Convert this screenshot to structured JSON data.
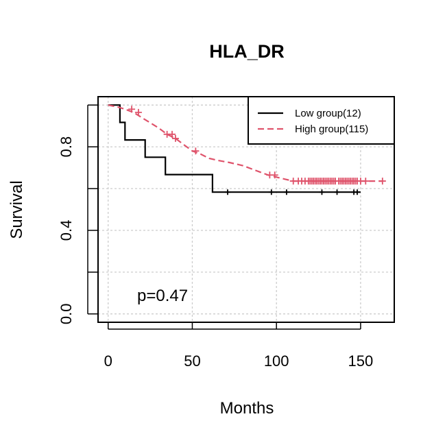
{
  "chart_data": {
    "type": "line",
    "subtype": "kaplan-meier",
    "title": "HLA_DR",
    "xlabel": "Months",
    "ylabel": "Survival",
    "xlim": [
      -6,
      170
    ],
    "ylim": [
      -0.04,
      1.04
    ],
    "x_ticks": [
      0,
      50,
      100,
      150
    ],
    "x_tick_labels": [
      "0",
      "50",
      "100",
      "150"
    ],
    "y_ticks": [
      0.0,
      0.2,
      0.4,
      0.6,
      0.8,
      1.0
    ],
    "y_tick_labels": [
      "0.0",
      "",
      "0.4",
      "",
      "0.8",
      ""
    ],
    "grid": true,
    "legend_position": "top-right",
    "annotation": "p=0.47",
    "series": [
      {
        "name": "Low group(12)",
        "color": "#000000",
        "line_style": "solid",
        "steps": [
          [
            0,
            1.0
          ],
          [
            7,
            1.0
          ],
          [
            7,
            0.917
          ],
          [
            10,
            0.917
          ],
          [
            10,
            0.833
          ],
          [
            22,
            0.833
          ],
          [
            22,
            0.75
          ],
          [
            34,
            0.75
          ],
          [
            34,
            0.667
          ],
          [
            62,
            0.667
          ],
          [
            62,
            0.583
          ],
          [
            150,
            0.583
          ]
        ],
        "censor_x": [
          71,
          97,
          106,
          127,
          136,
          146,
          148
        ]
      },
      {
        "name": "High group(115)",
        "color": "#DF536B",
        "line_style": "dashed",
        "steps": [
          [
            0,
            1.0
          ],
          [
            6,
            0.99
          ],
          [
            10,
            0.98
          ],
          [
            15,
            0.965
          ],
          [
            20,
            0.94
          ],
          [
            25,
            0.915
          ],
          [
            30,
            0.89
          ],
          [
            35,
            0.86
          ],
          [
            40,
            0.84
          ],
          [
            45,
            0.81
          ],
          [
            50,
            0.78
          ],
          [
            55,
            0.765
          ],
          [
            60,
            0.745
          ],
          [
            65,
            0.735
          ],
          [
            72,
            0.725
          ],
          [
            80,
            0.71
          ],
          [
            85,
            0.695
          ],
          [
            90,
            0.68
          ],
          [
            95,
            0.665
          ],
          [
            100,
            0.655
          ],
          [
            105,
            0.645
          ],
          [
            110,
            0.636
          ],
          [
            163,
            0.636
          ]
        ],
        "censor_x": [
          14,
          18,
          35,
          38,
          40,
          52,
          96,
          99,
          110,
          113,
          115,
          117,
          119,
          120,
          121,
          122,
          123,
          124,
          125,
          126,
          127,
          128,
          129,
          130,
          131,
          132,
          133,
          134,
          135,
          137,
          138,
          139,
          140,
          141,
          142,
          143,
          144,
          145,
          146,
          147,
          148,
          150,
          153,
          163
        ]
      }
    ]
  }
}
